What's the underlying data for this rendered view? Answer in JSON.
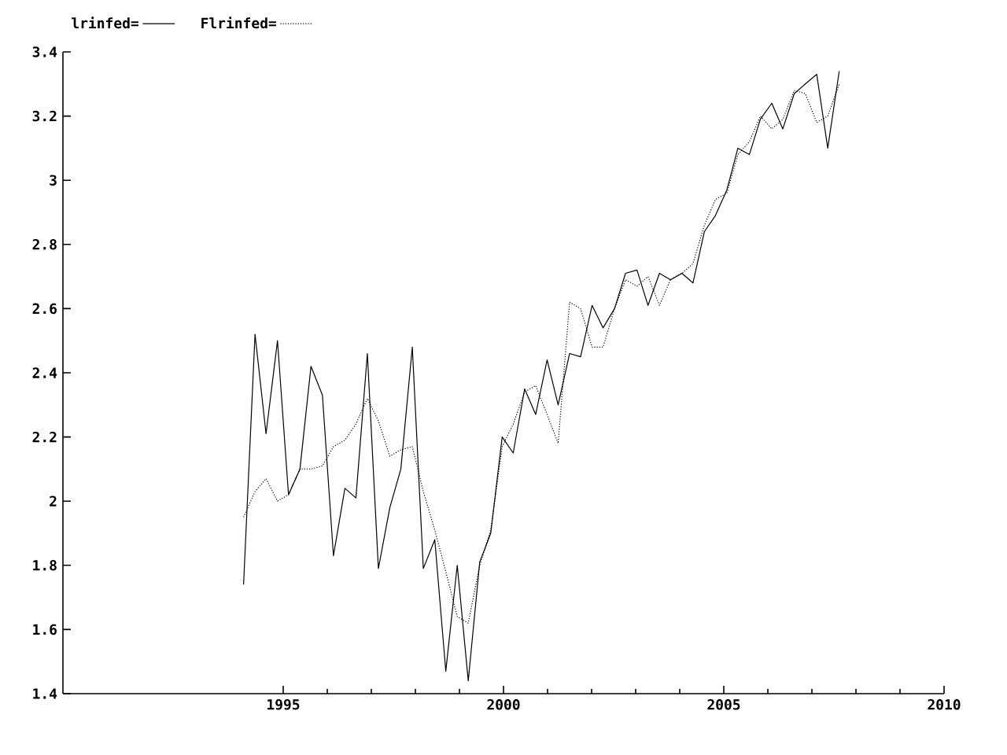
{
  "chart_data": {
    "type": "line",
    "x": [
      1994.1,
      1994.36,
      1994.61,
      1994.87,
      1995.12,
      1995.38,
      1995.63,
      1995.89,
      1996.14,
      1996.4,
      1996.65,
      1996.91,
      1997.16,
      1997.42,
      1997.67,
      1997.93,
      1998.18,
      1998.44,
      1998.69,
      1998.95,
      1999.2,
      1999.46,
      1999.71,
      1999.97,
      2000.22,
      2000.48,
      2000.73,
      2000.99,
      2001.24,
      2001.5,
      2001.75,
      2002.01,
      2002.26,
      2002.52,
      2002.77,
      2003.03,
      2003.28,
      2003.54,
      2003.79,
      2004.05,
      2004.3,
      2004.56,
      2004.81,
      2005.07,
      2005.32,
      2005.58,
      2005.83,
      2006.09,
      2006.34,
      2006.6,
      2006.85,
      2007.11,
      2007.36,
      2007.62
    ],
    "series": [
      {
        "name": "lrinfed=",
        "color": "#000000",
        "line_style": "solid",
        "values": [
          1.74,
          2.52,
          2.21,
          2.5,
          2.02,
          2.1,
          2.42,
          2.33,
          1.83,
          2.04,
          2.01,
          2.46,
          1.79,
          1.98,
          2.1,
          2.48,
          1.79,
          1.88,
          1.47,
          1.8,
          1.44,
          1.81,
          1.9,
          2.2,
          2.15,
          2.35,
          2.27,
          2.44,
          2.3,
          2.46,
          2.45,
          2.61,
          2.54,
          2.6,
          2.71,
          2.72,
          2.61,
          2.71,
          2.69,
          2.71,
          2.68,
          2.84,
          2.89,
          2.97,
          3.1,
          3.08,
          3.19,
          3.24,
          3.16,
          3.27,
          3.3,
          3.33,
          3.1,
          3.34
        ]
      },
      {
        "name": "Flrinfed=",
        "color": "#000000",
        "line_style": "dotted",
        "values": [
          1.95,
          2.03,
          2.07,
          2.0,
          2.02,
          2.1,
          2.1,
          2.11,
          2.17,
          2.19,
          2.24,
          2.32,
          2.25,
          2.14,
          2.16,
          2.17,
          2.03,
          1.91,
          1.78,
          1.64,
          1.62,
          1.8,
          1.91,
          2.17,
          2.24,
          2.34,
          2.36,
          2.27,
          2.18,
          2.62,
          2.6,
          2.48,
          2.48,
          2.6,
          2.69,
          2.67,
          2.7,
          2.61,
          2.69,
          2.71,
          2.74,
          2.86,
          2.94,
          2.96,
          3.08,
          3.12,
          3.2,
          3.16,
          3.19,
          3.28,
          3.27,
          3.18,
          3.2,
          3.3
        ]
      }
    ],
    "xlim": [
      1990,
      2010
    ],
    "xticks": [
      1995,
      2000,
      2005,
      2010
    ],
    "ylim": [
      1.4,
      3.4
    ],
    "yticks": [
      1.4,
      1.6,
      1.8,
      2,
      2.2,
      2.4,
      2.6,
      2.8,
      3,
      3.2,
      3.4
    ],
    "grid": false,
    "legend": "top left",
    "marker": "none"
  }
}
